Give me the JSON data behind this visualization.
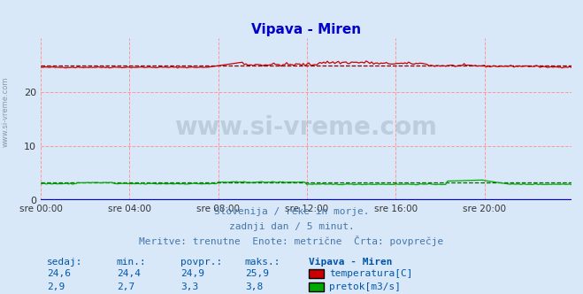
{
  "title": "Vipava - Miren",
  "title_color": "#0000cc",
  "background_color": "#d8e8f8",
  "plot_bg_color": "#d8e8f8",
  "grid_color": "#ff9999",
  "xlabel_ticks": [
    "sre 00:00",
    "sre 04:00",
    "sre 08:00",
    "sre 12:00",
    "sre 16:00",
    "sre 20:00"
  ],
  "xlabel_ticks_pos": [
    0,
    48,
    96,
    144,
    192,
    240
  ],
  "total_points": 288,
  "ylim": [
    0,
    30
  ],
  "yticks": [
    0,
    10,
    20
  ],
  "temp_avg": 24.9,
  "temp_min": 24.4,
  "temp_max": 25.9,
  "temp_current": 24.6,
  "flow_avg": 3.3,
  "flow_min": 2.7,
  "flow_max": 3.8,
  "flow_current": 2.9,
  "temp_color": "#cc0000",
  "flow_color": "#00aa00",
  "height_color": "#0000cc",
  "avg_line_color": "#880000",
  "flow_avg_color": "#006600",
  "watermark": "www.si-vreme.com",
  "watermark_color": "#aabbcc",
  "subtitle1": "Slovenija / reke in morje.",
  "subtitle2": "zadnji dan / 5 minut.",
  "subtitle3": "Meritve: trenutne  Enote: metrične  Črta: povprečje",
  "subtitle_color": "#4477aa",
  "table_header": [
    "sedaj:",
    "min.:",
    "povpr.:",
    "maks.:",
    "Vipava - Miren"
  ],
  "table_color": "#0055aa",
  "legend_labels": [
    "temperatura[C]",
    "pretok[m3/s]"
  ],
  "legend_colors": [
    "#cc0000",
    "#00aa00"
  ],
  "left_label": "www.si-vreme.com",
  "left_label_color": "#8899aa"
}
